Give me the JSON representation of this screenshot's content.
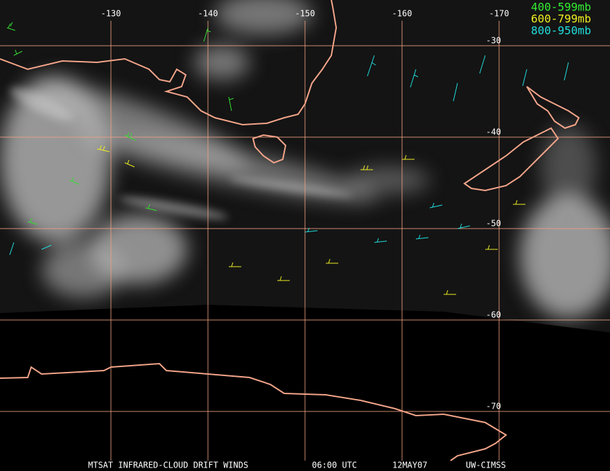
{
  "legend": [
    "400-599mb",
    "600-799mb",
    "800-950mb"
  ],
  "grid": {
    "lon": [
      -130,
      -140,
      -150,
      -160,
      -170
    ],
    "lat": [
      -30,
      -40,
      -50,
      -60,
      -70
    ]
  },
  "footer": {
    "product": "MTSAT INFRARED-CLOUD DRIFT WINDS",
    "time": "06:00 UTC",
    "date": "12MAY07",
    "source": "UW-CIMSS"
  }
}
